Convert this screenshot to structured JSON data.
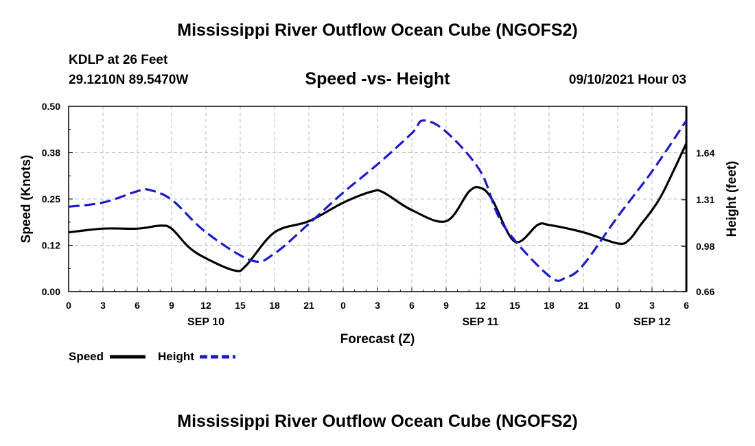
{
  "header": {
    "title": "Mississippi River Outflow Ocean Cube (NGOFS2)",
    "station": "KDLP at 26 Feet",
    "coords": "29.1210N  89.5470W",
    "datetime": "09/10/2021 Hour 03"
  },
  "footer": {
    "title": "Mississippi River Outflow Ocean Cube (NGOFS2)"
  },
  "colors": {
    "speed": "#000000",
    "height": "#1a1acc",
    "grid": "#bbbbbb"
  },
  "chart_data": {
    "type": "line",
    "title": "Speed -vs- Height",
    "xlabel": "Forecast (Z)",
    "ylabel_left": "Speed (Knots)",
    "ylabel_right": "Height (feet)",
    "xlim": [
      0,
      54
    ],
    "ylim_left": [
      0,
      0.5
    ],
    "ylim_right": [
      0.66,
      1.97
    ],
    "x_ticks": [
      0,
      3,
      6,
      9,
      12,
      15,
      18,
      21,
      24,
      27,
      30,
      33,
      36,
      39,
      42,
      45,
      48,
      51,
      54
    ],
    "x_tick_labels": [
      "0",
      "3",
      "6",
      "9",
      "12",
      "15",
      "18",
      "21",
      "0",
      "3",
      "6",
      "9",
      "12",
      "15",
      "18",
      "21",
      "0",
      "3",
      "6"
    ],
    "date_labels": [
      {
        "x": 12,
        "label": "SEP 10"
      },
      {
        "x": 36,
        "label": "SEP 11"
      },
      {
        "x": 51,
        "label": "SEP 12"
      }
    ],
    "y_left_ticks": [
      0.0,
      0.125,
      0.25,
      0.375,
      0.5
    ],
    "y_left_tick_labels": [
      "0.00",
      "0.12",
      "0.25",
      "0.38",
      "0.50"
    ],
    "y_right_ticks": [
      0.66,
      0.98,
      1.31,
      1.64
    ],
    "y_right_tick_labels": [
      "0.66",
      "0.98",
      "1.31",
      "1.64"
    ],
    "grid": true,
    "series": [
      {
        "name": "Speed",
        "axis": "left",
        "style": "solid",
        "x": [
          0,
          3,
          6,
          8,
          9,
          10.5,
          12,
          14.5,
          15.5,
          18,
          21,
          24,
          26.5,
          27.5,
          30,
          33,
          35,
          36,
          37,
          39,
          41,
          42,
          45,
          48,
          49,
          50,
          51,
          52,
          54
        ],
        "values": [
          0.16,
          0.17,
          0.17,
          0.178,
          0.17,
          0.12,
          0.09,
          0.057,
          0.07,
          0.16,
          0.19,
          0.24,
          0.27,
          0.268,
          0.22,
          0.19,
          0.27,
          0.28,
          0.25,
          0.135,
          0.18,
          0.18,
          0.16,
          0.13,
          0.14,
          0.18,
          0.22,
          0.27,
          0.4
        ]
      },
      {
        "name": "Height",
        "axis": "right",
        "style": "dashed",
        "x": [
          0,
          3,
          6,
          7,
          9,
          12,
          16,
          18,
          21,
          24,
          27,
          30,
          31,
          33,
          36,
          38,
          42,
          43.5,
          45,
          48,
          51,
          54
        ],
        "values": [
          1.26,
          1.29,
          1.37,
          1.38,
          1.31,
          1.08,
          0.88,
          0.93,
          1.14,
          1.36,
          1.56,
          1.78,
          1.87,
          1.79,
          1.51,
          1.13,
          0.77,
          0.76,
          0.85,
          1.19,
          1.51,
          1.87
        ]
      }
    ],
    "legend": {
      "position": "bottom-left",
      "entries": [
        {
          "label": "Speed"
        },
        {
          "label": "Height"
        }
      ]
    }
  }
}
